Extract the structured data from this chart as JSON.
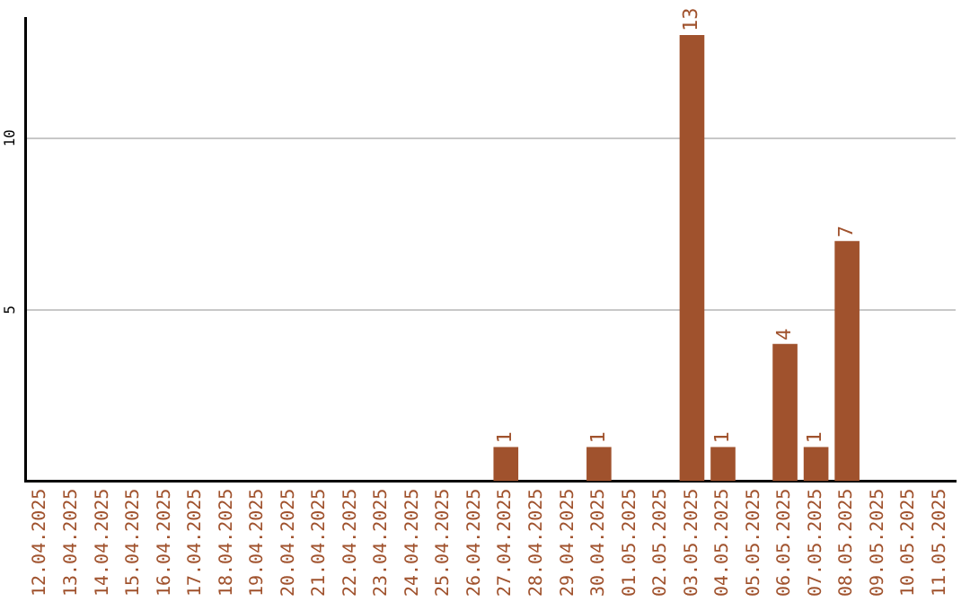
{
  "chart_data": {
    "type": "bar",
    "categories": [
      "12.04.2025",
      "13.04.2025",
      "14.04.2025",
      "15.04.2025",
      "16.04.2025",
      "17.04.2025",
      "18.04.2025",
      "19.04.2025",
      "20.04.2025",
      "21.04.2025",
      "22.04.2025",
      "23.04.2025",
      "24.04.2025",
      "25.04.2025",
      "26.04.2025",
      "27.04.2025",
      "28.04.2025",
      "29.04.2025",
      "30.04.2025",
      "01.05.2025",
      "02.05.2025",
      "03.05.2025",
      "04.05.2025",
      "05.05.2025",
      "06.05.2025",
      "07.05.2025",
      "08.05.2025",
      "09.05.2025",
      "10.05.2025",
      "11.05.2025"
    ],
    "values": [
      0,
      0,
      0,
      0,
      0,
      0,
      0,
      0,
      0,
      0,
      0,
      0,
      0,
      0,
      0,
      1,
      0,
      0,
      1,
      0,
      0,
      13,
      1,
      0,
      4,
      1,
      7,
      0,
      0,
      0
    ],
    "value_labels": [
      null,
      null,
      null,
      null,
      null,
      null,
      null,
      null,
      null,
      null,
      null,
      null,
      null,
      null,
      null,
      "1",
      null,
      null,
      "1",
      null,
      null,
      "13",
      "1",
      null,
      "4",
      "1",
      "7",
      null,
      null,
      null
    ],
    "color": "#a0522d",
    "ylim": [
      0,
      13.5
    ],
    "yticks": [
      5,
      10
    ],
    "grid": "y",
    "legend": false
  }
}
